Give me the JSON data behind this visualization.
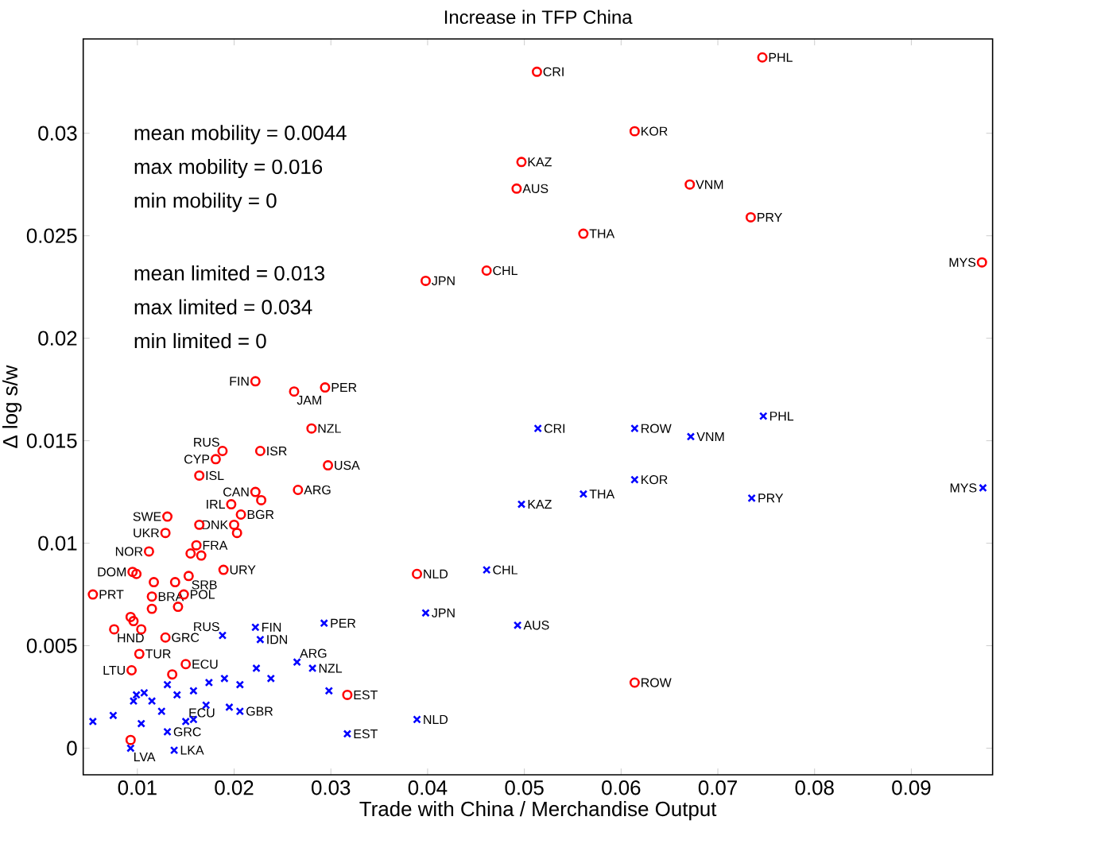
{
  "chart_data": {
    "type": "scatter",
    "title": "Increase in TFP China",
    "xlabel": "Trade with China / Merchandise Output",
    "ylabel": "Δ log s/w",
    "xlim": [
      0.0044,
      0.0984
    ],
    "ylim": [
      -0.0013,
      0.0346
    ],
    "xticks": [
      0.01,
      0.02,
      0.03,
      0.04,
      0.05,
      0.06,
      0.07,
      0.08,
      0.09
    ],
    "yticks": [
      0,
      0.005,
      0.01,
      0.015,
      0.02,
      0.025,
      0.03
    ],
    "grid": false,
    "series": [
      {
        "color": "#ff0000",
        "marker": "circle",
        "x": [
          0.0513,
          0.0746,
          0.0614,
          0.0497,
          0.0492,
          0.0671,
          0.0734,
          0.0561,
          0.0973,
          0.0461,
          0.0398,
          0.0389,
          0.0614,
          0.0317,
          0.0222,
          0.0262,
          0.0294,
          0.028,
          0.0188,
          0.0227,
          0.0181,
          0.0297,
          0.0164,
          0.0222,
          0.0266,
          0.0228,
          0.0197,
          0.0207,
          0.0131,
          0.0129,
          0.0164,
          0.02,
          0.0203,
          0.0161,
          0.0112,
          0.0155,
          0.0166,
          0.0189,
          0.0095,
          0.0099,
          0.0153,
          0.0117,
          0.0139,
          0.0054,
          0.0115,
          0.0148,
          0.0115,
          0.0142,
          0.0093,
          0.0096,
          0.0076,
          0.0104,
          0.0129,
          0.0102,
          0.0094,
          0.015,
          0.0136,
          0.0093
        ],
        "values": [
          0.033,
          0.0337,
          0.0301,
          0.0286,
          0.0273,
          0.0275,
          0.0259,
          0.0251,
          0.0237,
          0.0233,
          0.0228,
          0.0085,
          0.0032,
          0.0026,
          0.0179,
          0.0174,
          0.0176,
          0.0156,
          0.0145,
          0.0145,
          0.0141,
          0.0138,
          0.0133,
          0.0125,
          0.0126,
          0.0121,
          0.0119,
          0.0114,
          0.0113,
          0.0105,
          0.0109,
          0.0109,
          0.0105,
          0.0099,
          0.0096,
          0.0095,
          0.0094,
          0.0087,
          0.0086,
          0.0085,
          0.0084,
          0.0081,
          0.0081,
          0.0075,
          0.0074,
          0.0075,
          0.0068,
          0.0069,
          0.0064,
          0.0062,
          0.0058,
          0.0058,
          0.0054,
          0.0046,
          0.0038,
          0.0041,
          0.0036,
          0.0004
        ]
      },
      {
        "color": "#0000ff",
        "marker": "cross",
        "x": [
          0.0514,
          0.0614,
          0.0672,
          0.0747,
          0.0614,
          0.0561,
          0.0497,
          0.0735,
          0.0974,
          0.0461,
          0.0398,
          0.0493,
          0.0389,
          0.0317,
          0.0298,
          0.0293,
          0.0222,
          0.0227,
          0.0188,
          0.0138,
          0.0093,
          0.0054,
          0.0265,
          0.0281,
          0.0206,
          0.0131,
          0.015,
          0.0223,
          0.0075,
          0.0099,
          0.0096,
          0.0107,
          0.0115,
          0.0131,
          0.0141,
          0.0158,
          0.0174,
          0.019,
          0.0206,
          0.0238,
          0.0171,
          0.0195,
          0.0125,
          0.0158,
          0.0104
        ],
        "values": [
          0.0156,
          0.0156,
          0.0152,
          0.0162,
          0.0131,
          0.0124,
          0.0119,
          0.0122,
          0.0127,
          0.0087,
          0.0066,
          0.006,
          0.0014,
          0.0007,
          0.0028,
          0.0061,
          0.0059,
          0.0053,
          0.0055,
          -0.0001,
          0.0,
          0.0013,
          0.0042,
          0.0039,
          0.0018,
          0.0008,
          0.0013,
          0.0039,
          0.0016,
          0.0026,
          0.0023,
          0.0027,
          0.0023,
          0.0031,
          0.0026,
          0.0028,
          0.0032,
          0.0034,
          0.0031,
          0.0034,
          0.0021,
          0.002,
          0.0018,
          0.0014,
          0.0012
        ]
      }
    ],
    "annotations": [
      "mean mobility = 0.0044",
      "max mobility = 0.016",
      "min mobility = 0",
      "mean limited = 0.013",
      "max limited = 0.034",
      "min limited = 0",
      {
        "text": "CRI",
        "x": 0.0513,
        "y": 0.033
      },
      {
        "text": "PHL",
        "x": 0.0746,
        "y": 0.0337
      },
      {
        "text": "KOR",
        "x": 0.0614,
        "y": 0.0301
      },
      {
        "text": "KAZ",
        "x": 0.0497,
        "y": 0.0286
      },
      {
        "text": "AUS",
        "x": 0.0492,
        "y": 0.0273
      },
      {
        "text": "VNM",
        "x": 0.0671,
        "y": 0.0275
      },
      {
        "text": "PRY",
        "x": 0.0734,
        "y": 0.0259
      },
      {
        "text": "THA",
        "x": 0.0561,
        "y": 0.0251
      },
      {
        "text": "MYS",
        "x": 0.0973,
        "y": 0.0237
      },
      {
        "text": "CHL",
        "x": 0.0461,
        "y": 0.0233
      },
      {
        "text": "JPN",
        "x": 0.0398,
        "y": 0.0228
      },
      {
        "text": "NLD",
        "x": 0.0389,
        "y": 0.0085
      },
      {
        "text": "ROW",
        "x": 0.0614,
        "y": 0.0032
      },
      {
        "text": "EST",
        "x": 0.0317,
        "y": 0.0026
      },
      {
        "text": "FIN",
        "x": 0.0222,
        "y": 0.0179
      },
      {
        "text": "JAM",
        "x": 0.0262,
        "y": 0.0174
      },
      {
        "text": "PER",
        "x": 0.0294,
        "y": 0.0176
      },
      {
        "text": "NZL",
        "x": 0.028,
        "y": 0.0156
      },
      {
        "text": "RUS",
        "x": 0.0188,
        "y": 0.0145
      },
      {
        "text": "ISR",
        "x": 0.0227,
        "y": 0.0145
      },
      {
        "text": "CYP",
        "x": 0.0181,
        "y": 0.0141
      },
      {
        "text": "USA",
        "x": 0.0297,
        "y": 0.0138
      },
      {
        "text": "ISL",
        "x": 0.0164,
        "y": 0.0133
      },
      {
        "text": "CAN",
        "x": 0.0222,
        "y": 0.0125
      },
      {
        "text": "ARG",
        "x": 0.0266,
        "y": 0.0126
      },
      {
        "text": "IRL",
        "x": 0.0197,
        "y": 0.0119
      },
      {
        "text": "BGR",
        "x": 0.0207,
        "y": 0.0114
      },
      {
        "text": "SWE",
        "x": 0.0131,
        "y": 0.0113
      },
      {
        "text": "UKR",
        "x": 0.0129,
        "y": 0.0105
      },
      {
        "text": "DNK",
        "x": 0.02,
        "y": 0.0109
      },
      {
        "text": "FRA",
        "x": 0.0161,
        "y": 0.0099
      },
      {
        "text": "NOR",
        "x": 0.0112,
        "y": 0.0096
      },
      {
        "text": "URY",
        "x": 0.0189,
        "y": 0.0087
      },
      {
        "text": "DOM",
        "x": 0.0095,
        "y": 0.0086
      },
      {
        "text": "SRB",
        "x": 0.0153,
        "y": 0.0084
      },
      {
        "text": "PRT",
        "x": 0.0054,
        "y": 0.0075
      },
      {
        "text": "BRA",
        "x": 0.0115,
        "y": 0.0074
      },
      {
        "text": "POL",
        "x": 0.0148,
        "y": 0.0075
      },
      {
        "text": "HND",
        "x": 0.0076,
        "y": 0.0058
      },
      {
        "text": "GRC",
        "x": 0.0129,
        "y": 0.0054
      },
      {
        "text": "TUR",
        "x": 0.0102,
        "y": 0.0046
      },
      {
        "text": "LTU",
        "x": 0.0094,
        "y": 0.0038
      },
      {
        "text": "ECU",
        "x": 0.015,
        "y": 0.0041
      },
      {
        "text": "CRI",
        "x": 0.0514,
        "y": 0.0156
      },
      {
        "text": "ROW",
        "x": 0.0614,
        "y": 0.0156
      },
      {
        "text": "VNM",
        "x": 0.0672,
        "y": 0.0152
      },
      {
        "text": "PHL",
        "x": 0.0747,
        "y": 0.0162
      },
      {
        "text": "KOR",
        "x": 0.0614,
        "y": 0.0131
      },
      {
        "text": "THA",
        "x": 0.0561,
        "y": 0.0124
      },
      {
        "text": "KAZ",
        "x": 0.0497,
        "y": 0.0119
      },
      {
        "text": "PRY",
        "x": 0.0735,
        "y": 0.0122
      },
      {
        "text": "MYS",
        "x": 0.0974,
        "y": 0.0127
      },
      {
        "text": "CHL",
        "x": 0.0461,
        "y": 0.0087
      },
      {
        "text": "JPN",
        "x": 0.0398,
        "y": 0.0066
      },
      {
        "text": "AUS",
        "x": 0.0493,
        "y": 0.006
      },
      {
        "text": "NLD",
        "x": 0.0389,
        "y": 0.0014
      },
      {
        "text": "EST",
        "x": 0.0317,
        "y": 0.0007
      },
      {
        "text": "PER",
        "x": 0.0293,
        "y": 0.0061
      },
      {
        "text": "FIN",
        "x": 0.0222,
        "y": 0.0059
      },
      {
        "text": "IDN",
        "x": 0.0227,
        "y": 0.0053
      },
      {
        "text": "RUS",
        "x": 0.0188,
        "y": 0.0055
      },
      {
        "text": "LKA",
        "x": 0.0138,
        "y": -0.0001
      },
      {
        "text": "LVA",
        "x": 0.0093,
        "y": 0.0
      },
      {
        "text": "ARG",
        "x": 0.0265,
        "y": 0.0042
      },
      {
        "text": "NZL",
        "x": 0.0281,
        "y": 0.0039
      },
      {
        "text": "GBR",
        "x": 0.0206,
        "y": 0.0018
      },
      {
        "text": "GRC",
        "x": 0.0131,
        "y": 0.0008
      },
      {
        "text": "ECU",
        "x": 0.015,
        "y": 0.0013
      }
    ]
  }
}
